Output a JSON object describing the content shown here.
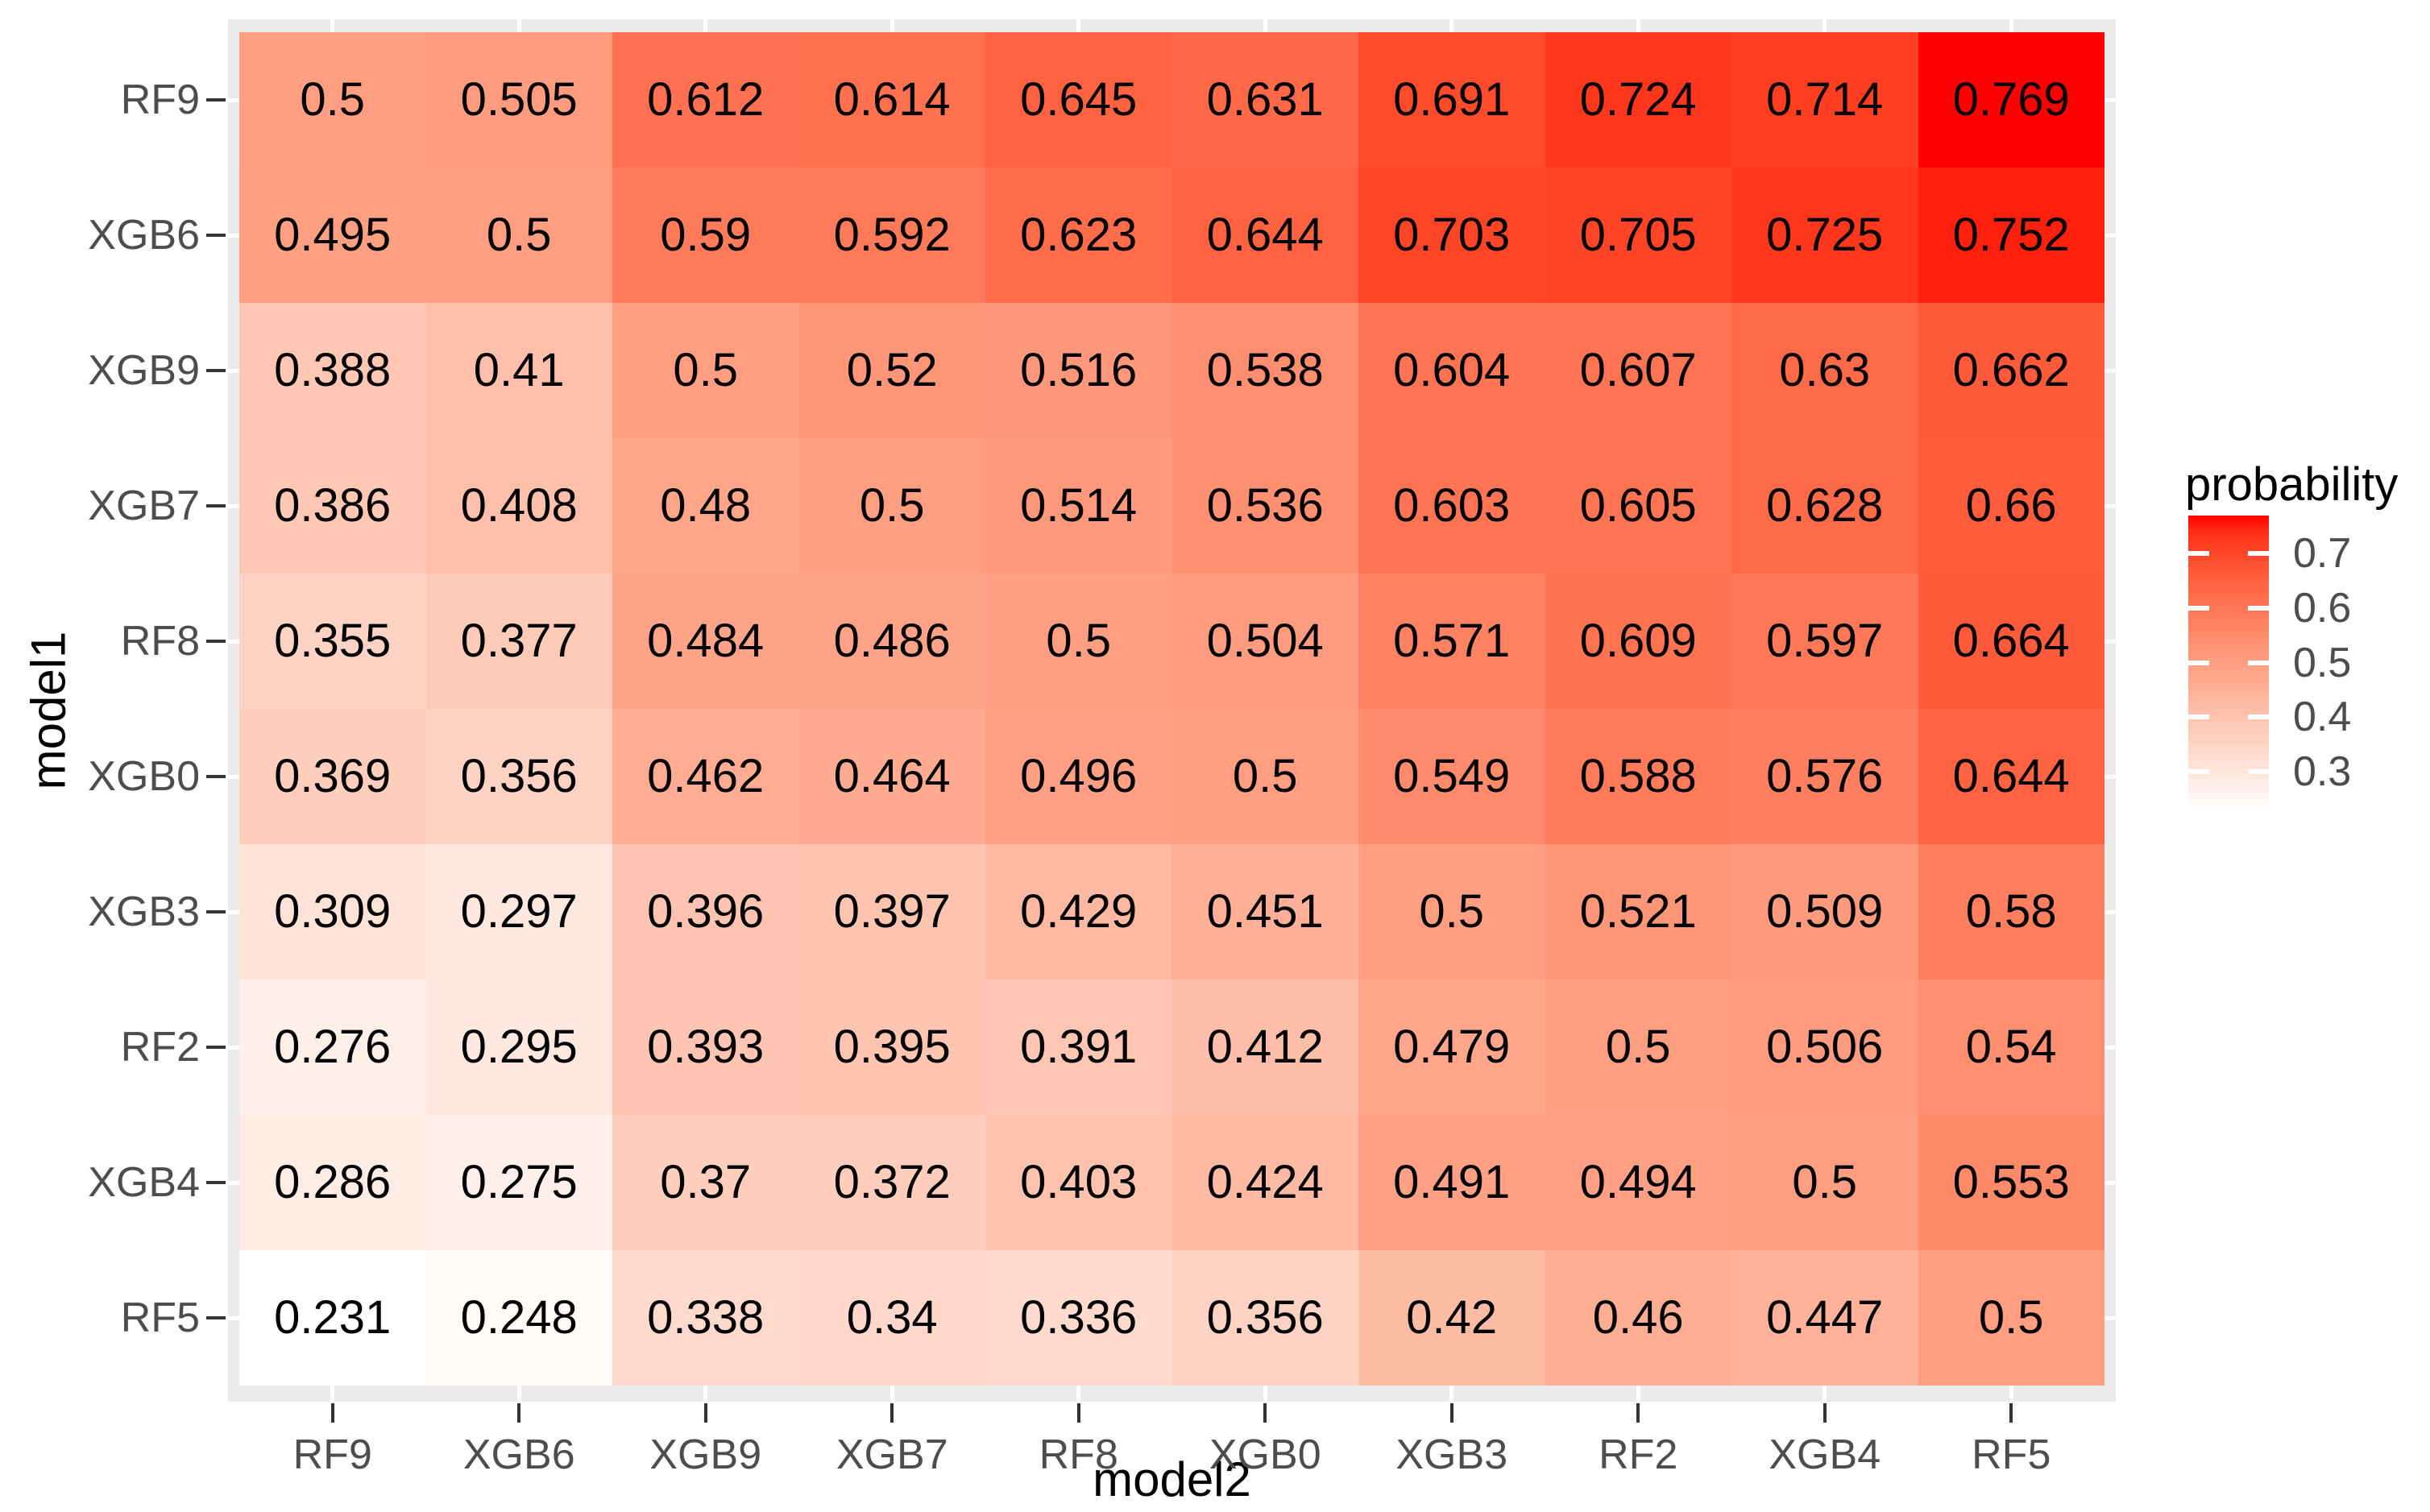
{
  "chart_data": {
    "type": "heatmap",
    "xlabel": "model2",
    "ylabel": "model1",
    "x_categories": [
      "RF9",
      "XGB6",
      "XGB9",
      "XGB7",
      "RF8",
      "XGB0",
      "XGB3",
      "RF2",
      "XGB4",
      "RF5"
    ],
    "y_categories": [
      "RF9",
      "XGB6",
      "XGB9",
      "XGB7",
      "RF8",
      "XGB0",
      "XGB3",
      "RF2",
      "XGB4",
      "RF5"
    ],
    "rows": [
      [
        0.5,
        0.505,
        0.612,
        0.614,
        0.645,
        0.631,
        0.691,
        0.724,
        0.714,
        0.769
      ],
      [
        0.495,
        0.5,
        0.59,
        0.592,
        0.623,
        0.644,
        0.703,
        0.705,
        0.725,
        0.752
      ],
      [
        0.388,
        0.41,
        0.5,
        0.52,
        0.516,
        0.538,
        0.604,
        0.607,
        0.63,
        0.662
      ],
      [
        0.386,
        0.408,
        0.48,
        0.5,
        0.514,
        0.536,
        0.603,
        0.605,
        0.628,
        0.66
      ],
      [
        0.355,
        0.377,
        0.484,
        0.486,
        0.5,
        0.504,
        0.571,
        0.609,
        0.597,
        0.664
      ],
      [
        0.369,
        0.356,
        0.462,
        0.464,
        0.496,
        0.5,
        0.549,
        0.588,
        0.576,
        0.644
      ],
      [
        0.309,
        0.297,
        0.396,
        0.397,
        0.429,
        0.451,
        0.5,
        0.521,
        0.509,
        0.58
      ],
      [
        0.276,
        0.295,
        0.393,
        0.395,
        0.391,
        0.412,
        0.479,
        0.5,
        0.506,
        0.54
      ],
      [
        0.286,
        0.275,
        0.37,
        0.372,
        0.403,
        0.424,
        0.491,
        0.494,
        0.5,
        0.553
      ],
      [
        0.231,
        0.248,
        0.338,
        0.34,
        0.336,
        0.356,
        0.42,
        0.46,
        0.447,
        0.5
      ]
    ],
    "value_min": 0.231,
    "value_max": 0.769,
    "legend": {
      "title": "probability",
      "ticks": [
        0.7,
        0.6,
        0.5,
        0.4,
        0.3
      ]
    },
    "style": {
      "low_color": "#FFFFFF",
      "high_color": "#FF0000",
      "panel_background": "#EBEBEB",
      "gridline_color": "#FFFFFF",
      "tick_color": "#333333",
      "tick_label_color": "#4D4D4D",
      "cell_text_color": "#000000"
    },
    "legend_position": "right",
    "grid": true
  }
}
